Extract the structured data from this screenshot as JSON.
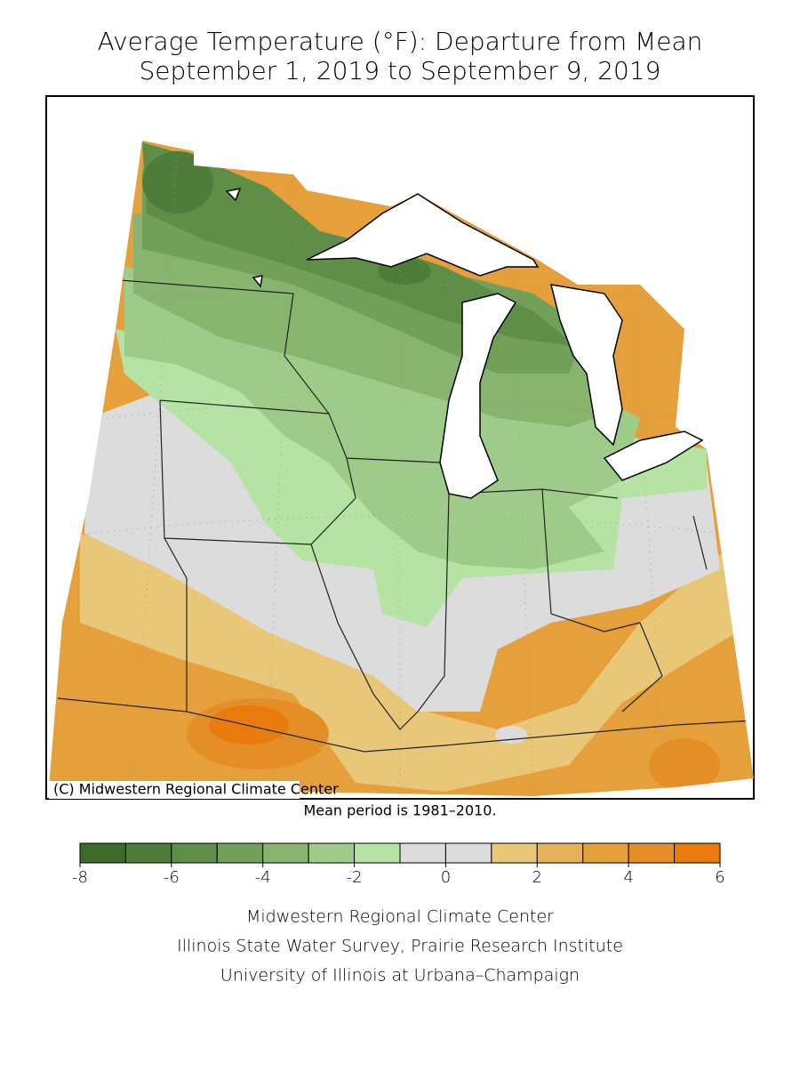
{
  "title": [
    "Average Temperature (°F): Departure from Mean",
    "September 1, 2019 to September 9, 2019"
  ],
  "copyright": "(C) Midwestern Regional Climate Center",
  "mean_period": "Mean period is 1981–2010.",
  "legend": {
    "bins": [
      -8,
      -7,
      -6,
      -5,
      -4,
      -3,
      -2,
      -1,
      0,
      1,
      2,
      3,
      4,
      5,
      6
    ],
    "colors": [
      "#3d6b2a",
      "#4d7d38",
      "#5e8e47",
      "#72a05a",
      "#88b470",
      "#9fcb88",
      "#b4e3a3",
      "#dcdcdc",
      "#dcdcdc",
      "#e8c878",
      "#e6b258",
      "#e5a03c",
      "#e58e28",
      "#e87b0c"
    ],
    "ticks": [
      -8,
      -6,
      -4,
      -2,
      0,
      2,
      4,
      6
    ]
  },
  "footer": [
    "Midwestern Regional Climate Center",
    "Illinois State Water Survey, Prairie Research Institute",
    "University of Illinois at Urbana–Champaign"
  ]
}
